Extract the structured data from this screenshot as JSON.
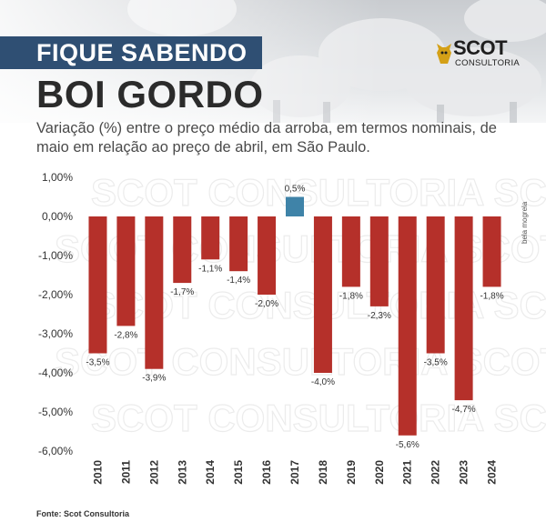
{
  "header": {
    "banner_label": "FIQUE SABENDO",
    "headline": "BOI GORDO",
    "logo_name": "SCOT",
    "logo_sub": "CONSULTORIA",
    "subtitle": "Variação (%) entre o preço médio da arroba, em termos nominais, de maio em relação ao preço de abril, em São Paulo."
  },
  "credit": "bela mogrela",
  "source": "Fonte: Scot Consultoria",
  "watermark": "SCOT CONSULTORIA",
  "colors": {
    "negative_bar": "#b5302a",
    "positive_bar": "#3f83a8",
    "banner": "#2f4f73",
    "text": "#333333"
  },
  "chart_data": {
    "type": "bar",
    "title": "",
    "xlabel": "",
    "ylabel": "",
    "categories": [
      "2010",
      "2011",
      "2012",
      "2013",
      "2014",
      "2015",
      "2016",
      "2017",
      "2018",
      "2019",
      "2020",
      "2021",
      "2022",
      "2023",
      "2024"
    ],
    "values": [
      -3.5,
      -2.8,
      -3.9,
      -1.7,
      -1.1,
      -1.4,
      -2.0,
      0.5,
      -4.0,
      -1.8,
      -2.3,
      -5.6,
      -3.5,
      -4.7,
      -1.8
    ],
    "value_labels": [
      "-3,5%",
      "-2,8%",
      "-3,9%",
      "-1,7%",
      "-1,1%",
      "-1,4%",
      "-2,0%",
      "0,5%",
      "-4,0%",
      "-1,8%",
      "-2,3%",
      "-5,6%",
      "-3,5%",
      "-4,7%",
      "-1,8%"
    ],
    "ylim": [
      -6,
      1
    ],
    "yticks": [
      1,
      0,
      -1,
      -2,
      -3,
      -4,
      -5,
      -6
    ],
    "ytick_labels": [
      "1,00%",
      "0,00%",
      "-1,00%",
      "-2,00%",
      "-3,00%",
      "-4,00%",
      "-5,00%",
      "-6,00%"
    ],
    "grid": false,
    "legend": "none"
  }
}
